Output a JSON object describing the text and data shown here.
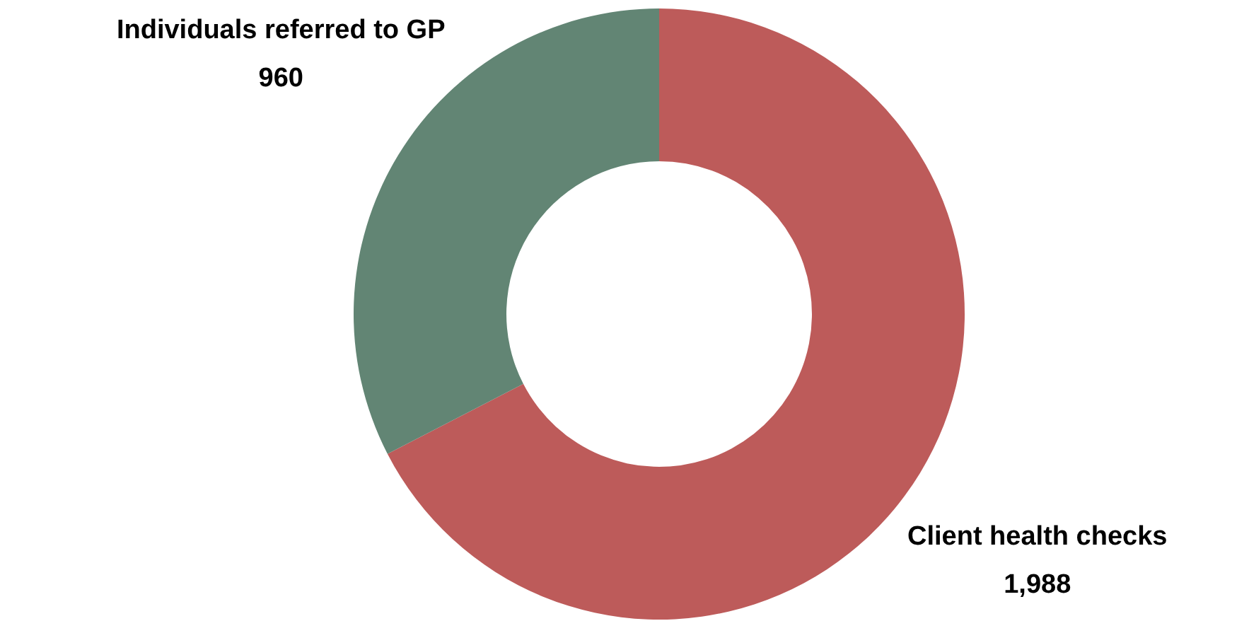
{
  "chart_data": {
    "type": "donut",
    "categories": [
      "Client health checks",
      "Individuals referred to GP"
    ],
    "values": [
      1988,
      960
    ],
    "colors": [
      "#bd5b5a",
      "#628574"
    ],
    "value_labels": [
      "1,988",
      "960"
    ]
  }
}
